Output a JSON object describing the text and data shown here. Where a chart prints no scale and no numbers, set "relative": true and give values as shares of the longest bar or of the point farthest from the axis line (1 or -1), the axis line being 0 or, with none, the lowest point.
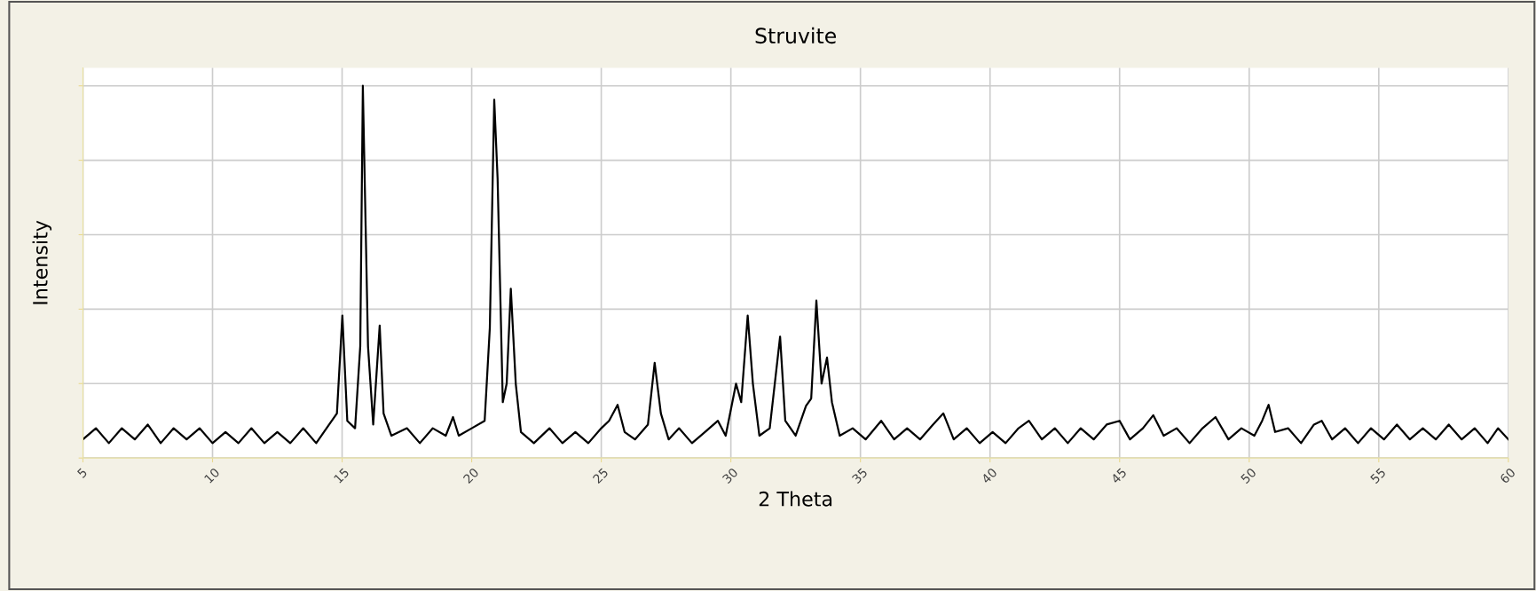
{
  "chart_data": {
    "type": "line",
    "title": "Struvite",
    "xlabel": "2 Theta",
    "ylabel": "Intensity",
    "relative": true,
    "xlim": [
      5,
      60
    ],
    "xticks": [
      5,
      10,
      15,
      20,
      25,
      30,
      35,
      40,
      45,
      50,
      55,
      60
    ],
    "grid": true,
    "legend": false,
    "series": [
      {
        "color": "#000000",
        "x": [
          5.0,
          5.5,
          6.0,
          6.5,
          7.0,
          7.5,
          8.0,
          8.5,
          9.0,
          9.5,
          10.0,
          10.5,
          11.0,
          11.5,
          12.0,
          12.5,
          13.0,
          13.5,
          14.0,
          14.5,
          14.8,
          15.01,
          15.2,
          15.5,
          15.7,
          15.8,
          16.0,
          16.2,
          16.45,
          16.6,
          16.9,
          17.5,
          18.0,
          18.5,
          19.0,
          19.28,
          19.5,
          20.0,
          20.5,
          20.7,
          20.87,
          21.0,
          21.2,
          21.35,
          21.51,
          21.7,
          21.9,
          22.4,
          23.0,
          23.5,
          24.0,
          24.5,
          25.0,
          25.3,
          25.63,
          25.9,
          26.3,
          26.8,
          27.06,
          27.3,
          27.6,
          28.0,
          28.5,
          29.0,
          29.5,
          29.8,
          30.2,
          30.4,
          30.65,
          30.85,
          31.1,
          31.5,
          31.9,
          32.1,
          32.5,
          32.9,
          33.1,
          33.3,
          33.5,
          33.71,
          33.9,
          34.2,
          34.7,
          35.2,
          35.8,
          36.3,
          36.8,
          37.3,
          37.8,
          38.2,
          38.6,
          39.1,
          39.6,
          40.1,
          40.6,
          41.1,
          41.5,
          42.0,
          42.5,
          43.0,
          43.5,
          44.0,
          44.5,
          45.0,
          45.4,
          45.9,
          46.3,
          46.7,
          47.2,
          47.7,
          48.2,
          48.7,
          49.2,
          49.7,
          50.2,
          50.5,
          50.75,
          51.0,
          51.5,
          52.0,
          52.5,
          52.8,
          53.2,
          53.7,
          54.2,
          54.7,
          55.2,
          55.7,
          56.2,
          56.7,
          57.2,
          57.7,
          58.2,
          58.7,
          59.2,
          59.6,
          60.0
        ],
        "values": [
          0.05,
          0.08,
          0.04,
          0.08,
          0.05,
          0.09,
          0.04,
          0.08,
          0.05,
          0.08,
          0.04,
          0.07,
          0.04,
          0.08,
          0.04,
          0.07,
          0.04,
          0.08,
          0.04,
          0.09,
          0.12,
          0.383,
          0.1,
          0.08,
          0.3,
          1.0,
          0.3,
          0.09,
          0.356,
          0.12,
          0.06,
          0.08,
          0.04,
          0.08,
          0.06,
          0.11,
          0.06,
          0.08,
          0.1,
          0.35,
          0.963,
          0.75,
          0.15,
          0.2,
          0.455,
          0.2,
          0.07,
          0.04,
          0.08,
          0.04,
          0.07,
          0.04,
          0.08,
          0.1,
          0.143,
          0.07,
          0.05,
          0.09,
          0.256,
          0.12,
          0.05,
          0.08,
          0.04,
          0.07,
          0.1,
          0.06,
          0.2,
          0.15,
          0.383,
          0.2,
          0.06,
          0.08,
          0.326,
          0.1,
          0.06,
          0.14,
          0.16,
          0.423,
          0.2,
          0.27,
          0.15,
          0.06,
          0.08,
          0.05,
          0.1,
          0.05,
          0.08,
          0.05,
          0.09,
          0.12,
          0.05,
          0.08,
          0.04,
          0.07,
          0.04,
          0.08,
          0.1,
          0.05,
          0.08,
          0.04,
          0.08,
          0.05,
          0.09,
          0.1,
          0.05,
          0.08,
          0.115,
          0.06,
          0.08,
          0.04,
          0.08,
          0.11,
          0.05,
          0.08,
          0.06,
          0.1,
          0.143,
          0.07,
          0.08,
          0.04,
          0.09,
          0.1,
          0.05,
          0.08,
          0.04,
          0.08,
          0.05,
          0.09,
          0.05,
          0.08,
          0.05,
          0.09,
          0.05,
          0.08,
          0.04,
          0.08,
          0.05
        ]
      }
    ]
  }
}
